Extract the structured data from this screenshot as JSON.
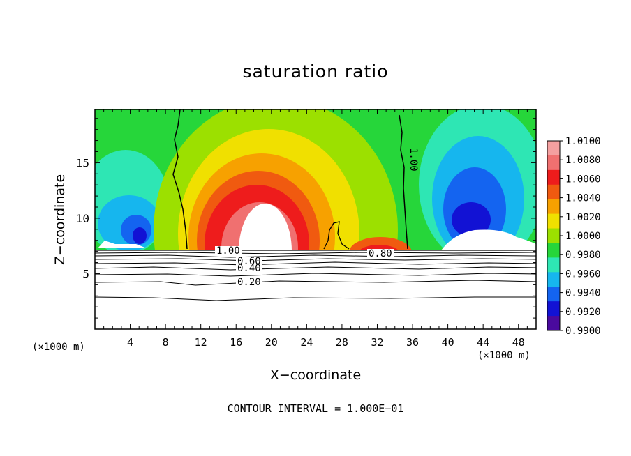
{
  "chart_data": {
    "type": "heatmap",
    "title": "saturation ratio",
    "xlabel": "X−coordinate",
    "ylabel": "Z−coordinate",
    "x_unit": "(×1000 m)",
    "x_ticks": [
      4,
      8,
      12,
      16,
      20,
      24,
      28,
      32,
      36,
      40,
      44,
      48
    ],
    "y_ticks": [
      5,
      10,
      15
    ],
    "xlim": [
      0,
      50
    ],
    "ylim": [
      0,
      19.8
    ],
    "colorbar": {
      "ticks": [
        "1.0100",
        "1.0080",
        "1.0060",
        "1.0040",
        "1.0020",
        "1.0000",
        "0.9980",
        "0.9960",
        "0.9940",
        "0.9920",
        "0.9900"
      ],
      "colors": [
        "#f4a0a0",
        "#f07070",
        "#ee1c1c",
        "#f05a10",
        "#f7a100",
        "#f0e000",
        "#9ce000",
        "#26d63a",
        "#2ee6b4",
        "#16b6ee",
        "#1464f0",
        "#1212d4",
        "#4a0a9e"
      ]
    },
    "contour_labels": [
      "1.00",
      "1.00",
      "0.80",
      "0.60",
      "0.40",
      "0.20"
    ],
    "contour_interval_text": "CONTOUR INTERVAL = 1.000E−01"
  }
}
